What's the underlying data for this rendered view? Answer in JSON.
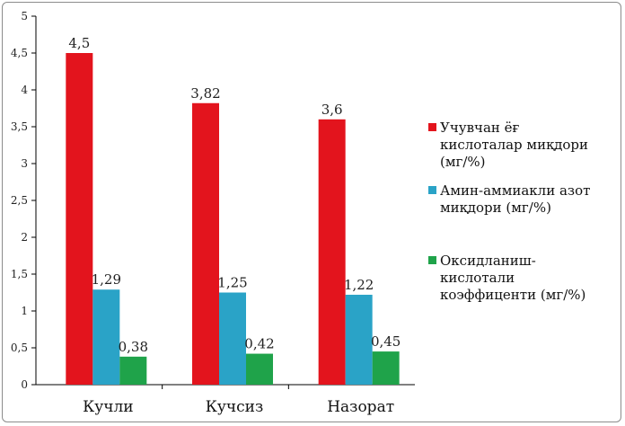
{
  "chart_data": {
    "type": "bar",
    "categories": [
      "Кучли",
      "Кучсиз",
      "Назорат"
    ],
    "series": [
      {
        "name": "Учувчан ёғ кислоталар миқдори (мг/%)",
        "legend_lines": [
          "Учувчан ёғ",
          "кислоталар миқдори",
          "(мг/%)"
        ],
        "color": "#e3141d",
        "values": [
          4.5,
          3.82,
          3.6
        ],
        "labels": [
          "4,5",
          "3,82",
          "3,6"
        ]
      },
      {
        "name": "Амин-аммиакли азот миқдори (мг/%)",
        "legend_lines": [
          "Амин-аммиакли азот",
          "миқдори (мг/%)"
        ],
        "color": "#2aa3c7",
        "values": [
          1.29,
          1.25,
          1.22
        ],
        "labels": [
          "1,29",
          "1,25",
          "1,22"
        ]
      },
      {
        "name": "Оксидланиш-кислотали коэффиценти (мг/%)",
        "legend_lines": [
          "Оксидланиш-",
          "кислотали",
          "коэффиценти (мг/%)"
        ],
        "color": "#1fa34a",
        "values": [
          0.38,
          0.42,
          0.45
        ],
        "labels": [
          "0,38",
          "0,42",
          "0,45"
        ]
      }
    ],
    "ylim": [
      0,
      5
    ],
    "yticks": [
      0,
      0.5,
      1,
      1.5,
      2,
      2.5,
      3,
      3.5,
      4,
      4.5,
      5
    ],
    "ytick_labels": [
      "0",
      "0,5",
      "1",
      "1,5",
      "2",
      "2,5",
      "3",
      "3,5",
      "4",
      "4,5",
      "5"
    ],
    "grid": false,
    "legend_position": "right"
  }
}
